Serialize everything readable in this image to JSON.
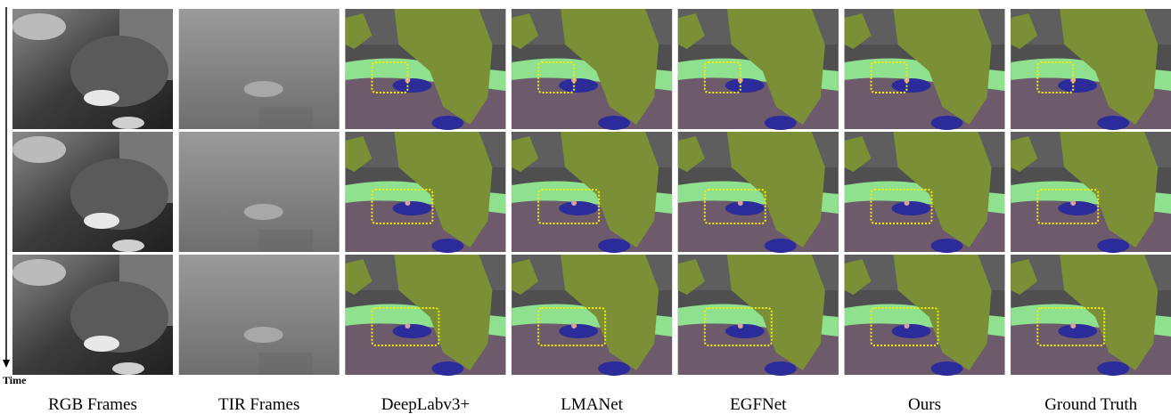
{
  "figure": {
    "time_label": "Time",
    "columns": [
      "RGB Frames",
      "TIR Frames",
      "DeepLabv3+",
      "LMANet",
      "EGFNet",
      "Ours",
      "Ground Truth"
    ]
  }
}
